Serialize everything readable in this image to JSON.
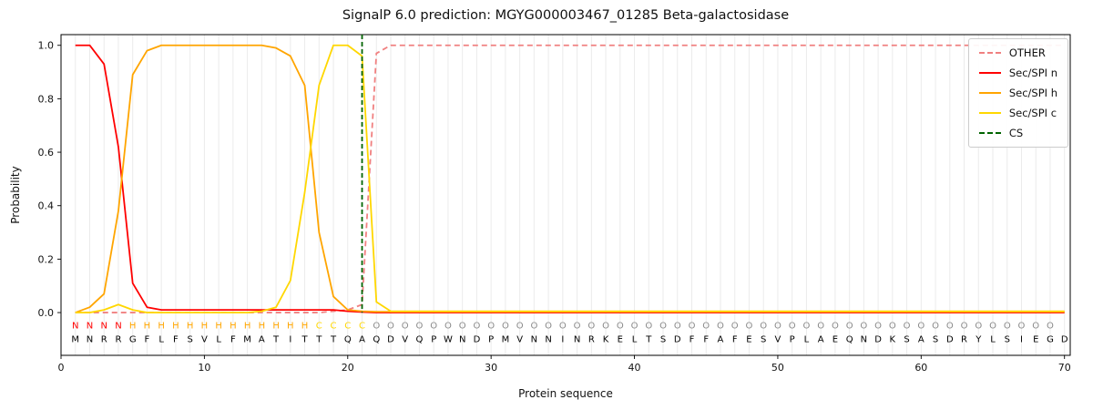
{
  "title": "SignalP 6.0 prediction: MGYG000003467_01285 Beta-galactosidase",
  "xlabel": "Protein sequence",
  "ylabel": "Probability",
  "chart_data": {
    "type": "line",
    "title": "SignalP 6.0 prediction: MGYG000003467_01285 Beta-galactosidase",
    "xlabel": "Protein sequence",
    "ylabel": "Probability",
    "xlim": [
      0,
      70.4
    ],
    "ylim": [
      -0.16,
      1.04
    ],
    "x_ticks": [
      0,
      10,
      20,
      30,
      40,
      50,
      60,
      70
    ],
    "y_ticks": [
      0.0,
      0.2,
      0.4,
      0.6,
      0.8,
      1.0
    ],
    "grid": "vertical-per-residue",
    "legend_position": "upper-right",
    "x_start": 1,
    "sequence": "MNRRGFLFSVLFMATITTTQAQDVQPWNDPMVNNINRKELTSDFFAFESVPLAEQNDKSASDRYLSIEGD",
    "regions": "NNNNHHHHHHHHHHHHHCCCCOOOOOOOOOOOOOOOOOOOOOOOOOOOOOOOOOOOOOOOOOOOOOOOO",
    "region_colors": {
      "N": "#ff0000",
      "H": "#ffa500",
      "C": "#ffd700",
      "O": "#8a8a8a"
    },
    "sequence_color": "#000000",
    "series": [
      {
        "name": "OTHER",
        "color": "#f08080",
        "dash": true,
        "values": [
          0,
          0,
          0,
          0,
          0,
          0,
          0,
          0,
          0,
          0,
          0,
          0,
          0,
          0,
          0,
          0,
          0,
          0,
          0.005,
          0.01,
          0.03,
          0.97,
          1,
          1,
          1,
          1,
          1,
          1,
          1,
          1,
          1,
          1,
          1,
          1,
          1,
          1,
          1,
          1,
          1,
          1,
          1,
          1,
          1,
          1,
          1,
          1,
          1,
          1,
          1,
          1,
          1,
          1,
          1,
          1,
          1,
          1,
          1,
          1,
          1,
          1,
          1,
          1,
          1,
          1,
          1,
          1,
          1,
          1,
          1,
          1
        ]
      },
      {
        "name": "Sec/SPI n",
        "color": "#ff0000",
        "dash": false,
        "values": [
          1,
          1,
          0.93,
          0.62,
          0.11,
          0.02,
          0.01,
          0.01,
          0.01,
          0.01,
          0.01,
          0.01,
          0.01,
          0.01,
          0.01,
          0.01,
          0.01,
          0.01,
          0.01,
          0.005,
          0.002,
          0,
          0,
          0,
          0,
          0,
          0,
          0,
          0,
          0,
          0,
          0,
          0,
          0,
          0,
          0,
          0,
          0,
          0,
          0,
          0,
          0,
          0,
          0,
          0,
          0,
          0,
          0,
          0,
          0,
          0,
          0,
          0,
          0,
          0,
          0,
          0,
          0,
          0,
          0,
          0,
          0,
          0,
          0,
          0,
          0,
          0,
          0,
          0,
          0
        ]
      },
      {
        "name": "Sec/SPI h",
        "color": "#ffa500",
        "dash": false,
        "values": [
          0,
          0.02,
          0.07,
          0.38,
          0.89,
          0.98,
          1,
          1,
          1,
          1,
          1,
          1,
          1,
          1,
          0.99,
          0.96,
          0.85,
          0.3,
          0.06,
          0.01,
          0.005,
          0.003,
          0.003,
          0.003,
          0.003,
          0.003,
          0.003,
          0.003,
          0.003,
          0.003,
          0.003,
          0.003,
          0.003,
          0.003,
          0.003,
          0.003,
          0.003,
          0.003,
          0.003,
          0.003,
          0.003,
          0.003,
          0.003,
          0.003,
          0.003,
          0.003,
          0.003,
          0.003,
          0.003,
          0.003,
          0.003,
          0.003,
          0.003,
          0.003,
          0.003,
          0.003,
          0.003,
          0.003,
          0.003,
          0.003,
          0.003,
          0.003,
          0.003,
          0.003,
          0.003,
          0.003,
          0.003,
          0.003,
          0.003,
          0.003
        ]
      },
      {
        "name": "Sec/SPI c",
        "color": "#ffd700",
        "dash": false,
        "values": [
          0,
          0,
          0.01,
          0.03,
          0.01,
          0,
          0,
          0,
          0,
          0,
          0,
          0,
          0,
          0.005,
          0.02,
          0.12,
          0.45,
          0.85,
          1,
          1,
          0.96,
          0.04,
          0.005,
          0.005,
          0.005,
          0.005,
          0.005,
          0.005,
          0.005,
          0.005,
          0.005,
          0.005,
          0.005,
          0.005,
          0.005,
          0.005,
          0.005,
          0.005,
          0.005,
          0.005,
          0.005,
          0.005,
          0.005,
          0.005,
          0.005,
          0.005,
          0.005,
          0.005,
          0.005,
          0.005,
          0.005,
          0.005,
          0.005,
          0.005,
          0.005,
          0.005,
          0.005,
          0.005,
          0.005,
          0.005,
          0.005,
          0.005,
          0.005,
          0.005,
          0.005,
          0.005,
          0.005,
          0.005,
          0.005,
          0.005
        ]
      },
      {
        "name": "CS",
        "color": "#006400",
        "dash": true,
        "type": "vline",
        "x": 21
      }
    ]
  }
}
